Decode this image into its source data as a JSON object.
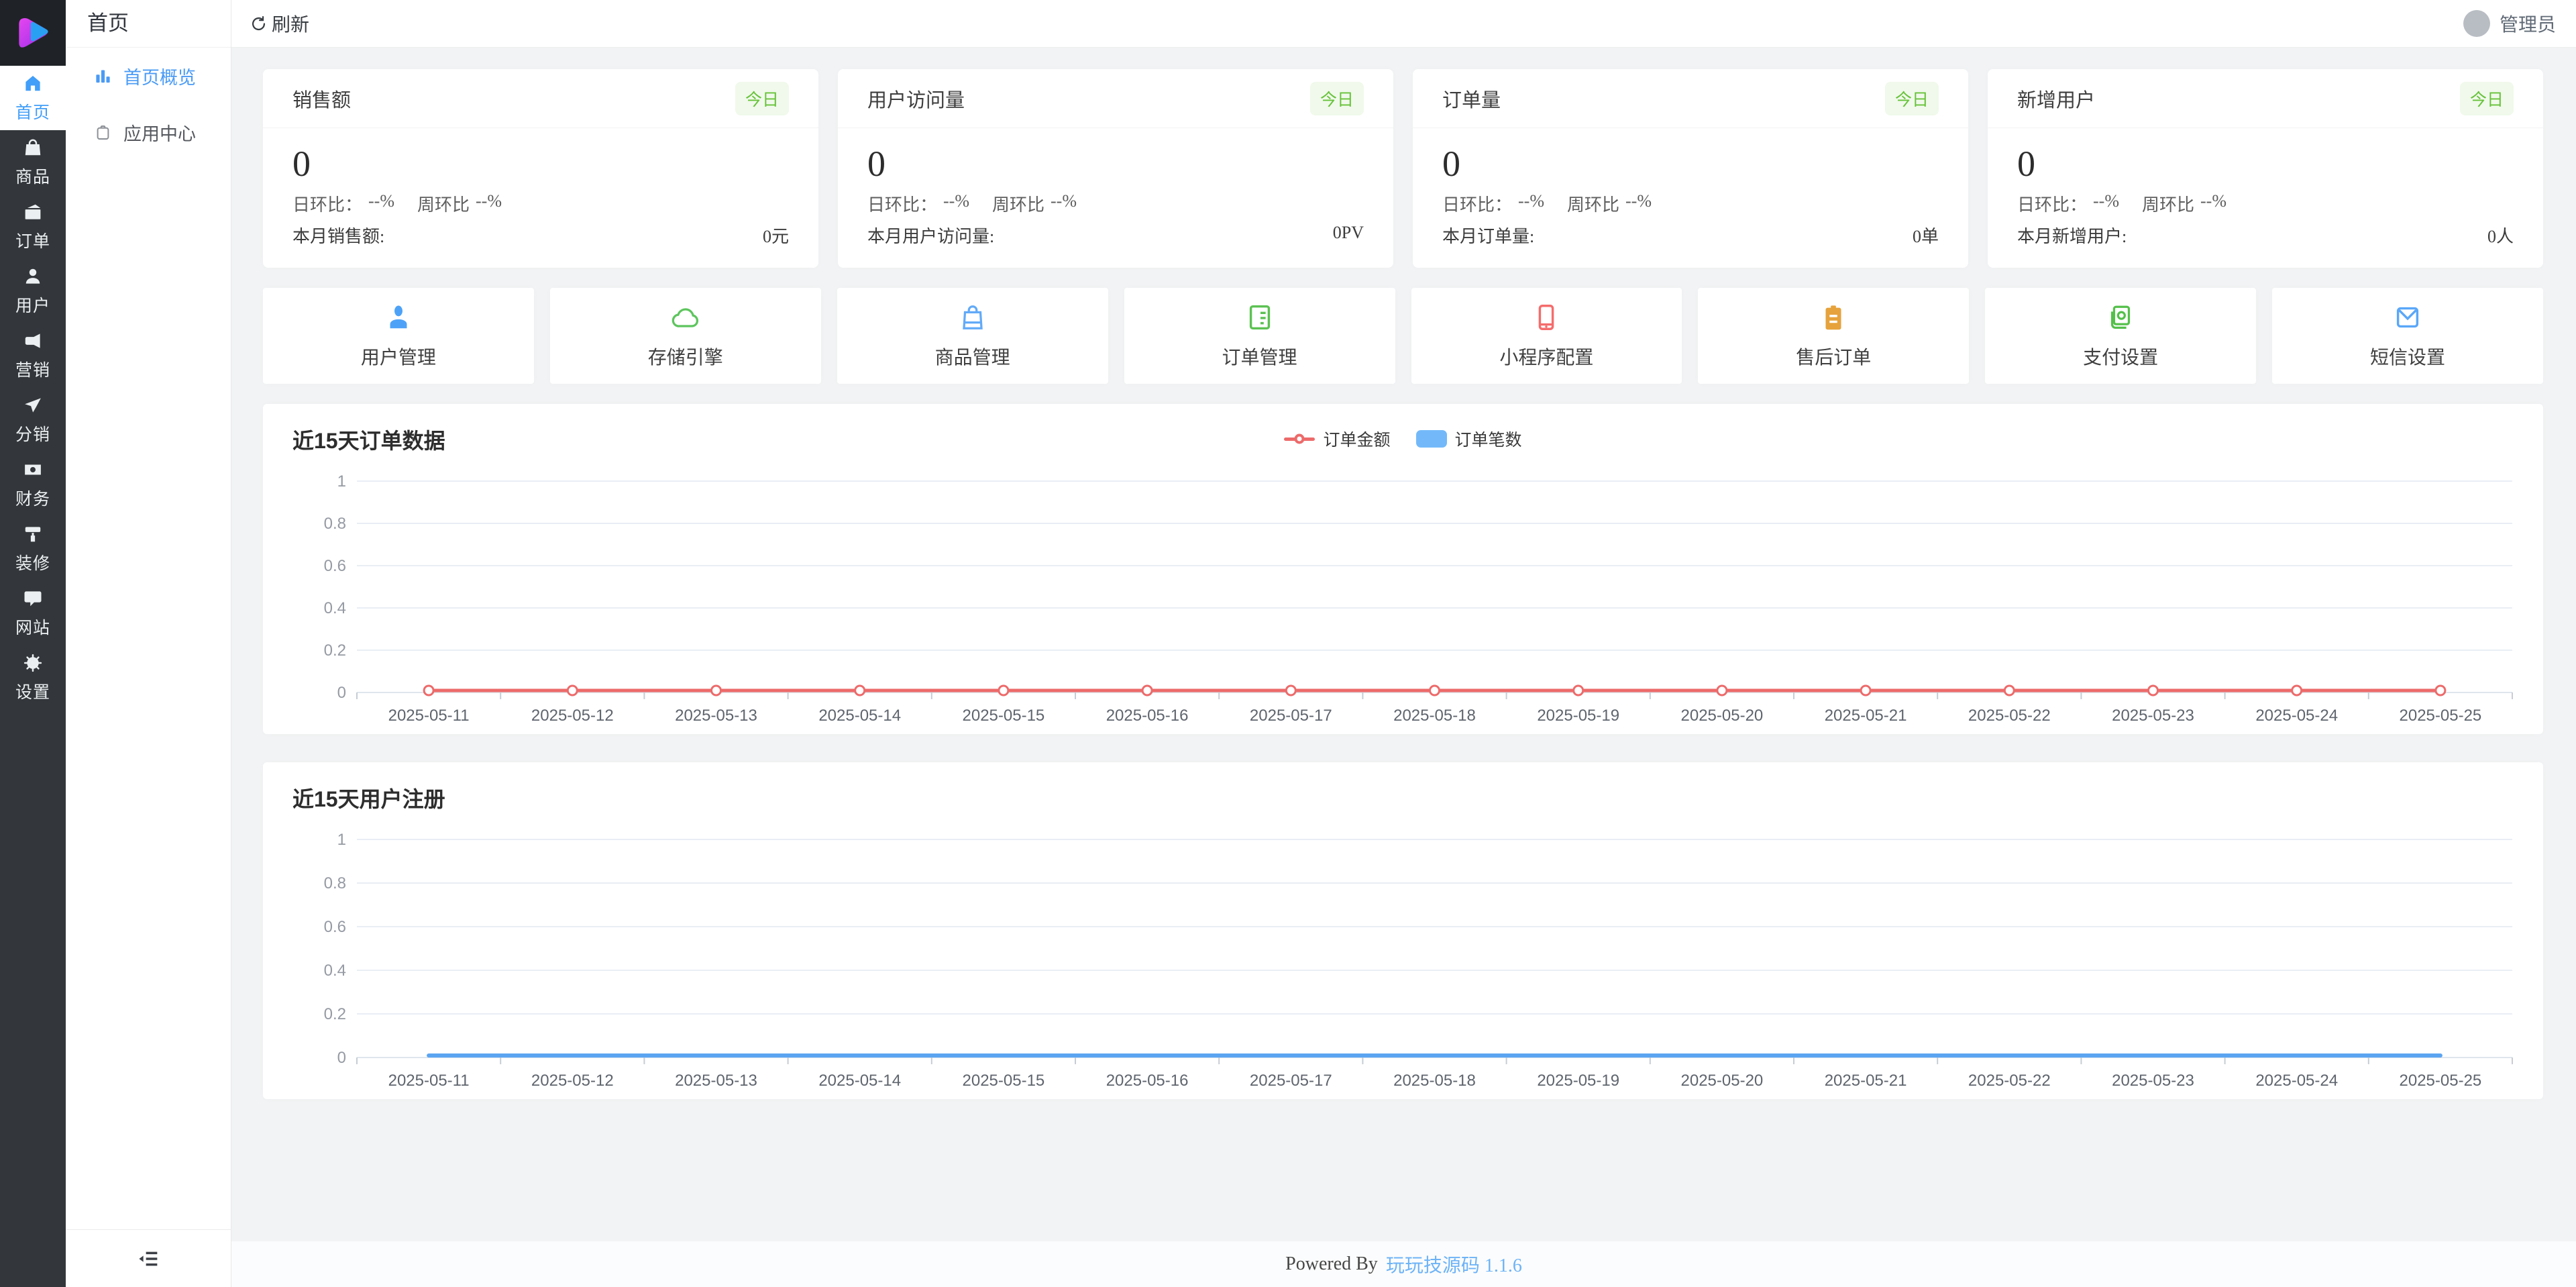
{
  "topbar": {
    "refresh_label": "刷新",
    "admin_label": "管理员"
  },
  "rail": {
    "items": [
      {
        "label": "首页"
      },
      {
        "label": "商品"
      },
      {
        "label": "订单"
      },
      {
        "label": "用户"
      },
      {
        "label": "营销"
      },
      {
        "label": "分销"
      },
      {
        "label": "财务"
      },
      {
        "label": "装修"
      },
      {
        "label": "网站"
      },
      {
        "label": "设置"
      }
    ]
  },
  "submenu": {
    "title": "首页",
    "items": [
      {
        "label": "首页概览"
      },
      {
        "label": "应用中心"
      }
    ]
  },
  "stats": [
    {
      "title": "销售额",
      "badge": "今日",
      "value": "0",
      "day_label": "日环比：",
      "day_value": "--%",
      "week_label": "周环比",
      "week_value": "--%",
      "footer_label": "本月销售额:",
      "footer_value": "0元"
    },
    {
      "title": "用户访问量",
      "badge": "今日",
      "value": "0",
      "day_label": "日环比：",
      "day_value": "--%",
      "week_label": "周环比",
      "week_value": "--%",
      "footer_label": "本月用户访问量:",
      "footer_value": "0PV"
    },
    {
      "title": "订单量",
      "badge": "今日",
      "value": "0",
      "day_label": "日环比：",
      "day_value": "--%",
      "week_label": "周环比",
      "week_value": "--%",
      "footer_label": "本月订单量:",
      "footer_value": "0单"
    },
    {
      "title": "新增用户",
      "badge": "今日",
      "value": "0",
      "day_label": "日环比：",
      "day_value": "--%",
      "week_label": "周环比",
      "week_value": "--%",
      "footer_label": "本月新增用户:",
      "footer_value": "0人"
    }
  ],
  "shortcuts": [
    {
      "label": "用户管理",
      "icon": "user-manage-icon",
      "color": "#4da2f8"
    },
    {
      "label": "存储引擎",
      "icon": "storage-cloud-icon",
      "color": "#5dc55d"
    },
    {
      "label": "商品管理",
      "icon": "goods-manage-icon",
      "color": "#62aaf8"
    },
    {
      "label": "订单管理",
      "icon": "order-manage-icon",
      "color": "#5cc152"
    },
    {
      "label": "小程序配置",
      "icon": "miniprogram-icon",
      "color": "#f56c6c"
    },
    {
      "label": "售后订单",
      "icon": "aftersale-icon",
      "color": "#e6a23c"
    },
    {
      "label": "支付设置",
      "icon": "payment-icon",
      "color": "#54c04a"
    },
    {
      "label": "短信设置",
      "icon": "sms-icon",
      "color": "#5aa7f8"
    }
  ],
  "chart_data": [
    {
      "type": "line",
      "title": "近15天订单数据",
      "categories": [
        "2025-05-11",
        "2025-05-12",
        "2025-05-13",
        "2025-05-14",
        "2025-05-15",
        "2025-05-16",
        "2025-05-17",
        "2025-05-18",
        "2025-05-19",
        "2025-05-20",
        "2025-05-21",
        "2025-05-22",
        "2025-05-23",
        "2025-05-24",
        "2025-05-25"
      ],
      "yticks": [
        0,
        0.2,
        0.4,
        0.6,
        0.8,
        1
      ],
      "ylim": [
        0,
        1
      ],
      "grid": true,
      "legend_position": "top-center",
      "series": [
        {
          "name": "订单金额",
          "type": "line",
          "color": "#ed6a6a",
          "marker": true,
          "values": [
            0,
            0,
            0,
            0,
            0,
            0,
            0,
            0,
            0,
            0,
            0,
            0,
            0,
            0,
            0
          ]
        },
        {
          "name": "订单笔数",
          "type": "bar",
          "color": "#73b9f9",
          "marker": false,
          "values": [
            0,
            0,
            0,
            0,
            0,
            0,
            0,
            0,
            0,
            0,
            0,
            0,
            0,
            0,
            0
          ]
        }
      ]
    },
    {
      "type": "line",
      "title": "近15天用户注册",
      "categories": [
        "2025-05-11",
        "2025-05-12",
        "2025-05-13",
        "2025-05-14",
        "2025-05-15",
        "2025-05-16",
        "2025-05-17",
        "2025-05-18",
        "2025-05-19",
        "2025-05-20",
        "2025-05-21",
        "2025-05-22",
        "2025-05-23",
        "2025-05-24",
        "2025-05-25"
      ],
      "yticks": [
        0,
        0.2,
        0.4,
        0.6,
        0.8,
        1
      ],
      "ylim": [
        0,
        1
      ],
      "grid": true,
      "legend_position": "none",
      "series": [
        {
          "name": "用户注册",
          "type": "line",
          "color": "#5ba4f2",
          "marker": false,
          "values": [
            0,
            0,
            0,
            0,
            0,
            0,
            0,
            0,
            0,
            0,
            0,
            0,
            0,
            0,
            0
          ]
        }
      ]
    }
  ],
  "footer": {
    "powered_by": "Powered By",
    "link_label": "玩玩技源码 1.1.6"
  },
  "colors": {
    "accent_blue": "#419ef9",
    "badge_green": "#67c23a",
    "badge_green_bg": "#f0f9eb",
    "rail_bg": "#33373b",
    "chart_red": "#ed6a6a",
    "chart_blue": "#5ba4f2",
    "legend_bar_blue": "#73b9f9"
  }
}
